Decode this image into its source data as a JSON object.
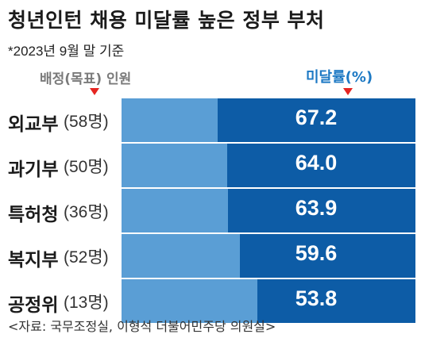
{
  "chart_data": {
    "type": "bar",
    "title": "청년인턴 채용 미달률 높은 정부 부처",
    "basis_note": "*2023년 9월 말 기준",
    "quota_header": "배정(목표) 인원",
    "value_header": "미달률(%)",
    "categories": [
      "외교부",
      "과기부",
      "특허청",
      "복지부",
      "공정위"
    ],
    "quota_labels": [
      "(58명)",
      "(50명)",
      "(36명)",
      "(52명)",
      "(13명)"
    ],
    "values": [
      67.2,
      64.0,
      63.9,
      59.6,
      53.8
    ],
    "value_labels": [
      "67.2",
      "64.0",
      "63.9",
      "59.6",
      "53.8"
    ],
    "unit": "%",
    "source": "<자료: 국무조정실, 이형석 더불어민주당 의원실>",
    "colors": {
      "track": "#5a9ed5",
      "fill": "#0d5ca6",
      "header_accent": "#1d79c4",
      "marker": "#e52521"
    }
  }
}
